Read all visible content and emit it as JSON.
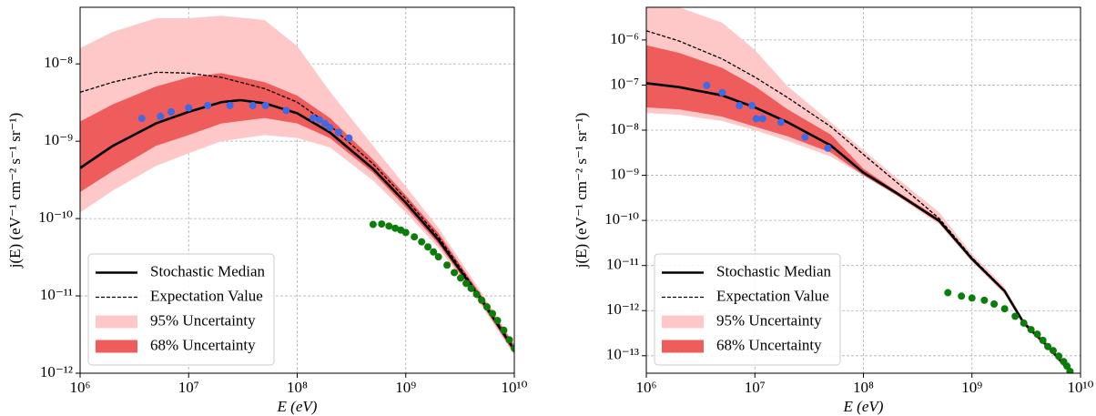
{
  "chart_data": [
    {
      "type": "line",
      "xscale": "log",
      "yscale": "log",
      "grid": true,
      "legend": "lower left",
      "xlabel": "E (eV)",
      "ylabel": "j(E) (eV⁻¹ cm⁻² s⁻¹ sr⁻¹)",
      "xlim": [
        1000000,
        10000000000
      ],
      "ylim": [
        1e-12,
        5.4e-08
      ],
      "xticks": [
        {
          "value": 1000000,
          "label": "10⁶"
        },
        {
          "value": 10000000,
          "label": "10⁷"
        },
        {
          "value": 100000000,
          "label": "10⁸"
        },
        {
          "value": 1000000000,
          "label": "10⁹"
        },
        {
          "value": 10000000000,
          "label": "10¹⁰"
        }
      ],
      "yticks": [
        {
          "value": 1e-12,
          "label": "10⁻¹²"
        },
        {
          "value": 1e-11,
          "label": "10⁻¹¹"
        },
        {
          "value": 1e-10,
          "label": "10⁻¹⁰"
        },
        {
          "value": 1e-09,
          "label": "10⁻⁹"
        },
        {
          "value": 1e-08,
          "label": "10⁻⁸"
        }
      ],
      "series": [
        {
          "name": "Stochastic Median",
          "color": "#000000",
          "style": "solid",
          "x": [
            1000000,
            2000000,
            5000000,
            10000000,
            20000000,
            30000000,
            50000000,
            100000000,
            200000000,
            500000000,
            1000000000,
            2000000000,
            5000000000,
            10000000000
          ],
          "values": [
            4.5e-10,
            8.7e-10,
            1.7e-09,
            2.4e-09,
            3.2e-09,
            3.4e-09,
            3.1e-09,
            2.3e-09,
            1.3e-09,
            4.4e-10,
            1.6e-10,
            5.3e-11,
            8.8e-12,
            2e-12
          ]
        },
        {
          "name": "Expectation Value",
          "color": "#000000",
          "style": "dashed",
          "x": [
            1000000,
            2000000,
            5000000,
            10000000,
            20000000,
            50000000,
            100000000,
            200000000,
            500000000,
            1000000000,
            2000000000,
            5000000000,
            10000000000
          ],
          "values": [
            4.3e-09,
            5.8e-09,
            7.8e-09,
            7.6e-09,
            6.7e-09,
            4.8e-09,
            3.2e-09,
            1.6e-09,
            5.1e-10,
            1.8e-10,
            5.8e-11,
            9.3e-12,
            2.1e-12
          ]
        },
        {
          "name": "95% Uncertainty",
          "color": "#ffc8c8",
          "style": "band",
          "x": [
            1000000,
            2000000,
            5000000,
            10000000,
            20000000,
            50000000,
            100000000,
            200000000,
            500000000,
            1000000000,
            2000000000,
            5000000000,
            10000000000
          ],
          "lower": [
            1.2e-10,
            2.3e-10,
            4.8e-10,
            7e-10,
            1e-09,
            1.2e-09,
            1.1e-09,
            8.3e-10,
            3.1e-10,
            1.2e-10,
            4.2e-11,
            7.4e-12,
            1.7e-12
          ],
          "upper": [
            1.6e-08,
            2.6e-08,
            3.9e-08,
            3.9e-08,
            4.2e-08,
            3.7e-08,
            1.7e-08,
            4.4e-09,
            8.7e-10,
            2.6e-10,
            7.6e-11,
            1.1e-11,
            2.4e-12
          ]
        },
        {
          "name": "68% Uncertainty",
          "color": "#ee5c5c",
          "style": "band",
          "x": [
            1000000,
            2000000,
            5000000,
            10000000,
            20000000,
            50000000,
            100000000,
            200000000,
            500000000,
            1000000000,
            2000000000,
            5000000000,
            10000000000
          ],
          "lower": [
            2.2e-10,
            4.1e-10,
            8.7e-10,
            1.2e-09,
            1.7e-09,
            2e-09,
            1.7e-09,
            1.1e-09,
            3.9e-10,
            1.4e-10,
            4.7e-11,
            7.9e-12,
            1.8e-12
          ],
          "upper": [
            1.8e-09,
            3e-09,
            5.1e-09,
            6.7e-09,
            7.6e-09,
            5.8e-09,
            3.9e-09,
            2e-09,
            5.8e-10,
            2e-10,
            6.5e-11,
            1e-11,
            2.3e-12
          ]
        }
      ],
      "points": [
        {
          "color": "#4169e1",
          "x": [
            3700000,
            5500000,
            6900000,
            10000000,
            15000000,
            24000000,
            39000000,
            51000000,
            79000000,
            140000000,
            160000000,
            180000000,
            200000000,
            240000000,
            300000000
          ],
          "values": [
            1.97e-09,
            2.1e-09,
            2.4e-09,
            2.7e-09,
            2.9e-09,
            2.9e-09,
            2.9e-09,
            2.9e-09,
            2.5e-09,
            2e-09,
            1.9e-09,
            1.7e-09,
            1.5e-09,
            1.3e-09,
            1.1e-09
          ]
        },
        {
          "color": "#0a7d0a",
          "x": [
            500000000,
            600000000,
            700000000,
            800000000,
            900000000,
            1000000000,
            1200000000,
            1400000000,
            1600000000,
            1800000000,
            2000000000,
            2400000000,
            2800000000,
            3200000000,
            3600000000,
            4000000000,
            4500000000,
            5000000000,
            5600000000,
            6300000000,
            7000000000,
            8000000000,
            9000000000,
            10000000000
          ],
          "values": [
            8.4e-11,
            8.5e-11,
            8e-11,
            7.5e-11,
            7.1e-11,
            6.6e-11,
            5.8e-11,
            5e-11,
            4.3e-11,
            3.7e-11,
            3.2e-11,
            2.5e-11,
            2e-11,
            1.7e-11,
            1.45e-11,
            1.25e-11,
            1.05e-11,
            8.8e-12,
            7.2e-12,
            5.9e-12,
            4.8e-12,
            3.6e-12,
            2.7e-12,
            2.1e-12
          ]
        }
      ]
    },
    {
      "type": "line",
      "xscale": "log",
      "yscale": "log",
      "grid": true,
      "legend": "lower left",
      "xlabel": "E (eV)",
      "ylabel": "j(E) (eV⁻¹ cm⁻² s⁻¹ sr⁻¹)",
      "xlim": [
        1000000,
        10000000000
      ],
      "ylim": [
        4.1e-14,
        5.3e-06
      ],
      "xticks": [
        {
          "value": 1000000,
          "label": "10⁶"
        },
        {
          "value": 10000000,
          "label": "10⁷"
        },
        {
          "value": 100000000,
          "label": "10⁸"
        },
        {
          "value": 1000000000,
          "label": "10⁹"
        },
        {
          "value": 10000000000,
          "label": "10¹⁰"
        }
      ],
      "yticks": [
        {
          "value": 1e-13,
          "label": "10⁻¹³"
        },
        {
          "value": 1e-12,
          "label": "10⁻¹²"
        },
        {
          "value": 1e-11,
          "label": "10⁻¹¹"
        },
        {
          "value": 1e-10,
          "label": "10⁻¹⁰"
        },
        {
          "value": 1e-09,
          "label": "10⁻⁹"
        },
        {
          "value": 1e-08,
          "label": "10⁻⁸"
        },
        {
          "value": 1e-07,
          "label": "10⁻⁷"
        },
        {
          "value": 1e-06,
          "label": "10⁻⁶"
        }
      ],
      "series": [
        {
          "name": "Stochastic Median",
          "color": "#000000",
          "style": "solid",
          "x": [
            1000000,
            2000000,
            5000000,
            10000000,
            20000000,
            50000000,
            100000000,
            200000000,
            500000000,
            1000000000,
            2000000000,
            3000000000,
            5000000000,
            8000000000
          ],
          "values": [
            1.1e-07,
            9e-08,
            5.9e-08,
            3.2e-08,
            1.5e-08,
            4.6e-09,
            1.15e-09,
            4.1e-10,
            9.7e-11,
            1.4e-11,
            2.7e-12,
            5.3e-13,
            1.6e-13,
            4.5e-14
          ]
        },
        {
          "name": "Expectation Value",
          "color": "#000000",
          "style": "dashed",
          "x": [
            1000000,
            2000000,
            5000000,
            10000000,
            20000000,
            50000000,
            100000000,
            200000000,
            500000000,
            1000000000,
            2000000000,
            3000000000,
            5000000000,
            8000000000
          ],
          "values": [
            1.6e-06,
            9.5e-07,
            3.8e-07,
            1.5e-07,
            5.3e-08,
            1.2e-08,
            2.9e-09,
            7.2e-10,
            1.1e-10,
            1.5e-11,
            2.8e-12,
            5.6e-13,
            1.6e-13,
            4.5e-14
          ]
        },
        {
          "name": "95% Uncertainty",
          "color": "#ffc8c8",
          "style": "band",
          "x": [
            1000000,
            2000000,
            5000000,
            10000000,
            20000000,
            50000000,
            100000000,
            200000000,
            500000000,
            1000000000,
            2000000000,
            3000000000,
            5000000000,
            8000000000
          ],
          "lower": [
            2.4e-08,
            2.2e-08,
            1.6e-08,
            1e-08,
            5.8e-09,
            2.6e-09,
            1e-09,
            3.6e-10,
            8.1e-11,
            1.2e-11,
            2.3e-12,
            4.6e-13,
            1.4e-13,
            3.9e-14
          ],
          "upper": [
            5.3e-06,
            5.3e-06,
            2.4e-06,
            6e-07,
            9.4e-08,
            1.5e-08,
            3.6e-09,
            9e-10,
            1.5e-10,
            1.8e-11,
            3.3e-12,
            6.2e-13,
            1.9e-13,
            5.2e-14
          ]
        },
        {
          "name": "68% Uncertainty",
          "color": "#ee5c5c",
          "style": "band",
          "x": [
            1000000,
            2000000,
            5000000,
            10000000,
            20000000,
            50000000,
            100000000,
            200000000,
            500000000,
            1000000000,
            2000000000,
            3000000000,
            5000000000,
            8000000000
          ],
          "lower": [
            3.2e-08,
            2.9e-08,
            2e-08,
            1.2e-08,
            7.3e-09,
            3.2e-09,
            1e-09,
            3.7e-10,
            8.9e-11,
            1.3e-11,
            2.5e-12,
            4.9e-13,
            1.5e-13,
            4.1e-14
          ],
          "upper": [
            7.6e-07,
            5.2e-07,
            2.4e-07,
            9.4e-08,
            2.9e-08,
            8e-09,
            1.4e-09,
            4.5e-10,
            1.1e-10,
            1.5e-11,
            3e-12,
            5.9e-13,
            1.8e-13,
            5e-14
          ]
        }
      ],
      "points": [
        {
          "color": "#4169e1",
          "x": [
            3600000,
            5000000,
            7200000,
            9400000,
            10300000,
            11800000,
            17400000,
            29000000,
            47000000
          ],
          "values": [
            9.8e-08,
            6.8e-08,
            3.5e-08,
            3.5e-08,
            1.8e-08,
            1.8e-08,
            1.5e-08,
            7e-09,
            4e-09
          ]
        },
        {
          "color": "#0a7d0a",
          "x": [
            600000000,
            800000000,
            1000000000,
            1300000000,
            1600000000,
            2000000000,
            2500000000,
            3000000000,
            3500000000,
            4000000000,
            4500000000,
            5000000000,
            5600000000,
            6300000000,
            7000000000,
            7500000000,
            8000000000
          ],
          "values": [
            2.5e-12,
            2.1e-12,
            1.9e-12,
            1.7e-12,
            1.4e-12,
            1.1e-12,
            7.5e-13,
            5.3e-13,
            3.8e-13,
            3e-13,
            2.2e-13,
            1.6e-13,
            1.3e-13,
            9.8e-14,
            7.4e-14,
            5.9e-14,
            4.5e-14
          ]
        }
      ]
    }
  ]
}
